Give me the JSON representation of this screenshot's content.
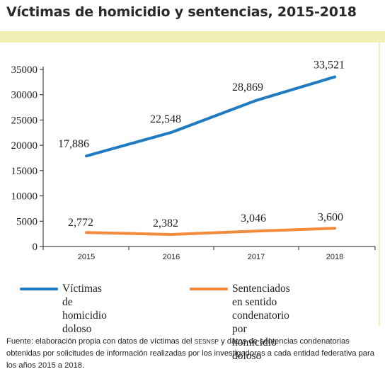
{
  "title": "Víctimas de homicidio y sentencias, 2015-2018",
  "colors": {
    "band": "#f0f0b4",
    "series1": "#1f7ac2",
    "series2": "#f28a3c",
    "axis": "#231f20"
  },
  "chart_data": {
    "type": "line",
    "x": [
      "2015",
      "2016",
      "2017",
      "2018"
    ],
    "ylim": [
      0,
      35000
    ],
    "yticks": [
      "0",
      "5000",
      "10000",
      "15000",
      "20000",
      "25000",
      "30000",
      "35000"
    ],
    "grid": false,
    "legend_position": "bottom",
    "series": [
      {
        "name": "Víctimas de homicidio doloso",
        "values": [
          17886,
          22548,
          28869,
          33521
        ],
        "labels": [
          "17,886",
          "22,548",
          "28,869",
          "33,521"
        ]
      },
      {
        "name": "Sentenciados en sentido condenatorio por homicidio doloso",
        "values": [
          2772,
          2382,
          3046,
          3600
        ],
        "labels": [
          "2,772",
          "2,382",
          "3,046",
          "3,600"
        ]
      }
    ]
  },
  "legend": {
    "series1": [
      "Víctimas de homicidio",
      "doloso"
    ],
    "series2": [
      "Sentenciados en sentido",
      "condenatorio por homicidio",
      "doloso"
    ]
  },
  "source": {
    "pre": "Fuente: elaboración propia con datos de víctimas del ",
    "abbr": "SESNSP",
    "post": " y datos de sentencias condenatorias obtenidas por solicitudes de información realizadas por los investigadores a cada entidad federativa para los años 2015 a 2018."
  }
}
